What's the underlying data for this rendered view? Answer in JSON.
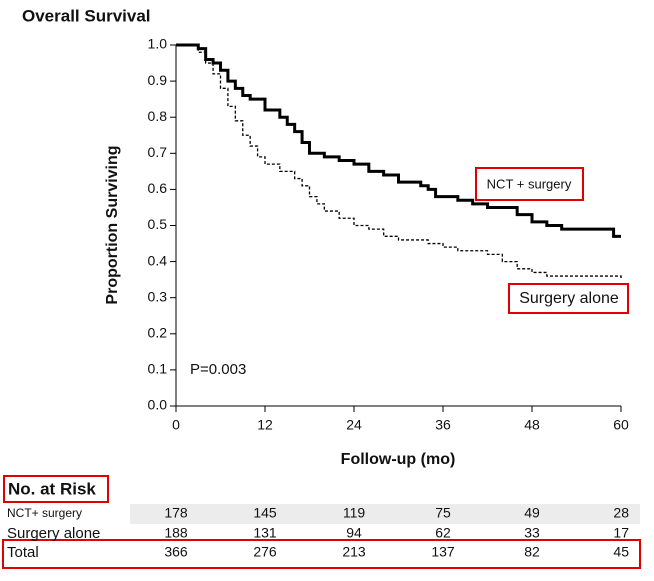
{
  "chart_data": {
    "type": "line",
    "title": "Overall Survival",
    "xlabel": "Follow-up (mo)",
    "ylabel": "Proportion Surviving",
    "xlim": [
      0,
      60
    ],
    "ylim": [
      0,
      1
    ],
    "xticks": [
      0,
      12,
      24,
      36,
      48,
      60
    ],
    "yticks": [
      {
        "value": 0,
        "label": "0.0"
      },
      0.1,
      0.2,
      0.3,
      0.4,
      0.5,
      0.6,
      0.7,
      0.8,
      0.9,
      {
        "value": 1,
        "label": "1.0"
      }
    ],
    "step": true,
    "series": [
      {
        "name": "NCT + surgery",
        "color": "#000000",
        "dashed": false,
        "x": [
          0,
          3,
          4,
          5,
          6,
          7,
          8,
          9,
          10,
          12,
          14,
          15,
          16,
          17,
          18,
          20,
          22,
          24,
          26,
          28,
          30,
          33,
          34,
          35,
          38,
          40,
          42,
          46,
          48,
          50,
          52,
          59,
          60
        ],
        "values": [
          1.0,
          0.99,
          0.96,
          0.95,
          0.93,
          0.9,
          0.88,
          0.86,
          0.85,
          0.82,
          0.8,
          0.78,
          0.76,
          0.73,
          0.7,
          0.69,
          0.68,
          0.67,
          0.65,
          0.64,
          0.62,
          0.61,
          0.6,
          0.58,
          0.57,
          0.56,
          0.55,
          0.53,
          0.51,
          0.5,
          0.49,
          0.47,
          0.47
        ]
      },
      {
        "name": "Surgery alone",
        "color": "#000000",
        "dashed": true,
        "x": [
          0,
          3,
          4,
          5,
          6,
          7,
          8,
          9,
          10,
          11,
          12,
          14,
          16,
          17,
          18,
          19,
          20,
          22,
          24,
          26,
          28,
          30,
          34,
          36,
          38,
          42,
          44,
          46,
          48,
          50,
          59,
          60
        ],
        "values": [
          1.0,
          0.98,
          0.95,
          0.92,
          0.88,
          0.83,
          0.79,
          0.75,
          0.72,
          0.69,
          0.67,
          0.65,
          0.63,
          0.61,
          0.58,
          0.56,
          0.54,
          0.52,
          0.5,
          0.49,
          0.47,
          0.46,
          0.45,
          0.44,
          0.43,
          0.42,
          0.4,
          0.38,
          0.37,
          0.36,
          0.36,
          0.35
        ]
      }
    ],
    "annotations": [
      "P=0.003"
    ],
    "risk_table": {
      "title": "No. at Risk",
      "rows": [
        {
          "label": "NCT+ surgery",
          "values": [
            178,
            145,
            119,
            75,
            49,
            28
          ]
        },
        {
          "label": "Surgery alone",
          "values": [
            188,
            131,
            94,
            62,
            33,
            17
          ]
        },
        {
          "label": "Total",
          "values": [
            366,
            276,
            213,
            137,
            82,
            45
          ]
        }
      ]
    }
  }
}
